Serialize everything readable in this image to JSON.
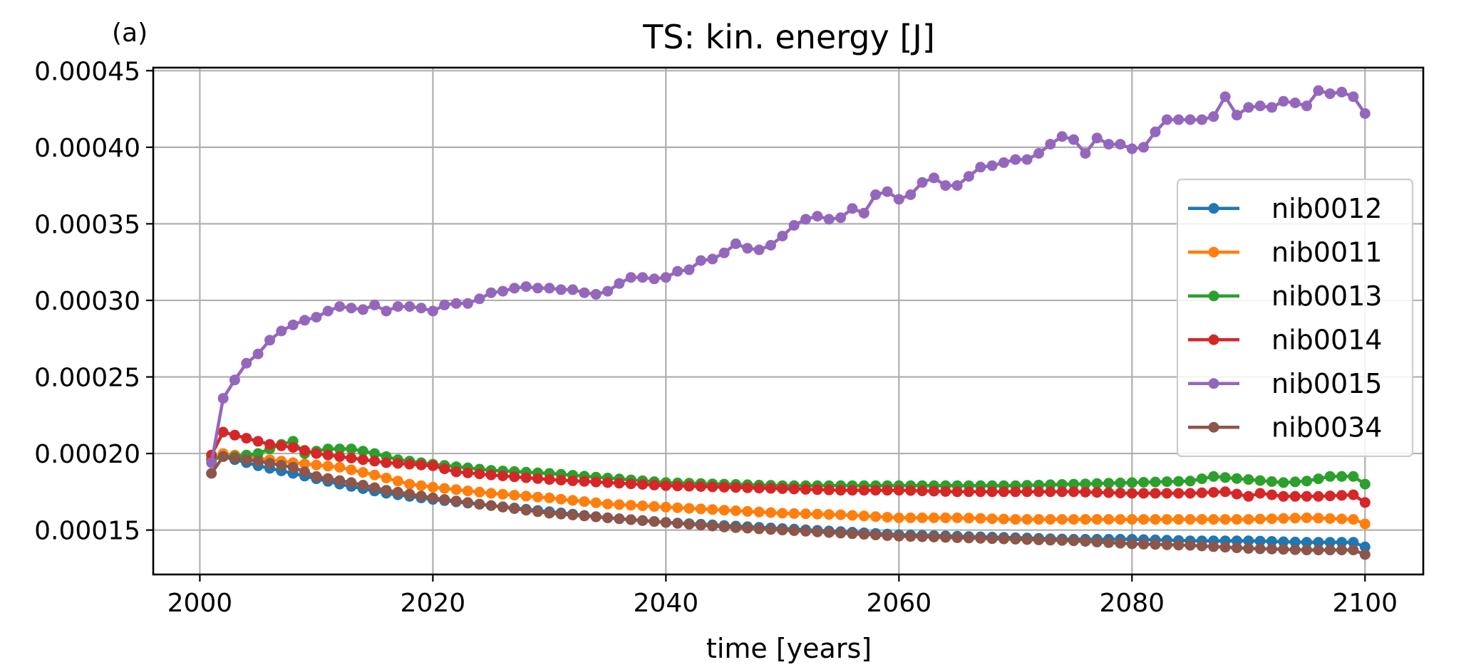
{
  "chart_data": {
    "type": "line",
    "title": "TS: kin. energy [J]",
    "panel_label": "(a)",
    "xlabel": "time [years]",
    "ylabel": "",
    "xlim": [
      1996,
      2105
    ],
    "ylim": [
      0.000121,
      0.000452
    ],
    "xticks": [
      2000,
      2020,
      2040,
      2060,
      2080,
      2100
    ],
    "xtick_labels": [
      "2000",
      "2020",
      "2040",
      "2060",
      "2080",
      "2100"
    ],
    "yticks": [
      0.00015,
      0.0002,
      0.00025,
      0.0003,
      0.00035,
      0.0004,
      0.00045
    ],
    "ytick_labels": [
      "0.00015",
      "0.00020",
      "0.00025",
      "0.00030",
      "0.00035",
      "0.00040",
      "0.00045"
    ],
    "grid": true,
    "legend_position": "center-right",
    "x_start": 2001,
    "x_end": 2100,
    "series": [
      {
        "name": "nib0012",
        "color": "#1f77b4",
        "knots": [
          [
            2001,
            0.000196
          ],
          [
            2002,
            0.000198
          ],
          [
            2005,
            0.000192
          ],
          [
            2008,
            0.000187
          ],
          [
            2012,
            0.00018
          ],
          [
            2016,
            0.000174
          ],
          [
            2020,
            0.00017
          ],
          [
            2025,
            0.000166
          ],
          [
            2030,
            0.000162
          ],
          [
            2035,
            0.000158
          ],
          [
            2040,
            0.000155
          ],
          [
            2045,
            0.000153
          ],
          [
            2050,
            0.000151
          ],
          [
            2055,
            0.000149
          ],
          [
            2060,
            0.000147
          ],
          [
            2065,
            0.000146
          ],
          [
            2070,
            0.000145
          ],
          [
            2075,
            0.000144
          ],
          [
            2080,
            0.000144
          ],
          [
            2085,
            0.000143
          ],
          [
            2090,
            0.000143
          ],
          [
            2095,
            0.000142
          ],
          [
            2099,
            0.000142
          ],
          [
            2100,
            0.000139
          ]
        ]
      },
      {
        "name": "nib0011",
        "color": "#ff7f0e",
        "knots": [
          [
            2001,
            0.000196
          ],
          [
            2002,
            0.0002
          ],
          [
            2005,
            0.000197
          ],
          [
            2008,
            0.000194
          ],
          [
            2012,
            0.000191
          ],
          [
            2015,
            0.000186
          ],
          [
            2018,
            0.00018
          ],
          [
            2020,
            0.000178
          ],
          [
            2025,
            0.000174
          ],
          [
            2030,
            0.000171
          ],
          [
            2035,
            0.000167
          ],
          [
            2040,
            0.000165
          ],
          [
            2045,
            0.000163
          ],
          [
            2050,
            0.000161
          ],
          [
            2055,
            0.00016
          ],
          [
            2060,
            0.000158
          ],
          [
            2065,
            0.000158
          ],
          [
            2070,
            0.000157
          ],
          [
            2075,
            0.000157
          ],
          [
            2080,
            0.000157
          ],
          [
            2085,
            0.000157
          ],
          [
            2090,
            0.000157
          ],
          [
            2095,
            0.000158
          ],
          [
            2099,
            0.000157
          ],
          [
            2100,
            0.000154
          ]
        ]
      },
      {
        "name": "nib0013",
        "color": "#2ca02c",
        "knots": [
          [
            2001,
            0.000196
          ],
          [
            2002,
            0.000198
          ],
          [
            2003,
            0.000198
          ],
          [
            2005,
            0.0002
          ],
          [
            2007,
            0.000206
          ],
          [
            2008,
            0.000208
          ],
          [
            2009,
            0.0002
          ],
          [
            2011,
            0.000203
          ],
          [
            2013,
            0.000203
          ],
          [
            2015,
            0.0002
          ],
          [
            2017,
            0.000196
          ],
          [
            2020,
            0.000193
          ],
          [
            2025,
            0.000189
          ],
          [
            2030,
            0.000187
          ],
          [
            2035,
            0.000184
          ],
          [
            2040,
            0.000181
          ],
          [
            2045,
            0.00018
          ],
          [
            2050,
            0.000179
          ],
          [
            2055,
            0.000179
          ],
          [
            2060,
            0.000179
          ],
          [
            2065,
            0.000179
          ],
          [
            2070,
            0.000179
          ],
          [
            2075,
            0.00018
          ],
          [
            2080,
            0.000181
          ],
          [
            2085,
            0.000182
          ],
          [
            2087,
            0.000185
          ],
          [
            2090,
            0.000183
          ],
          [
            2093,
            0.000181
          ],
          [
            2095,
            0.000182
          ],
          [
            2097,
            0.000185
          ],
          [
            2099,
            0.000185
          ],
          [
            2100,
            0.00018
          ]
        ]
      },
      {
        "name": "nib0014",
        "color": "#d62728",
        "knots": [
          [
            2001,
            0.000199
          ],
          [
            2002,
            0.000214
          ],
          [
            2003,
            0.000212
          ],
          [
            2006,
            0.000206
          ],
          [
            2008,
            0.000204
          ],
          [
            2010,
            0.0002
          ],
          [
            2013,
            0.000197
          ],
          [
            2016,
            0.000194
          ],
          [
            2020,
            0.000192
          ],
          [
            2022,
            0.000188
          ],
          [
            2025,
            0.000186
          ],
          [
            2030,
            0.000183
          ],
          [
            2035,
            0.000181
          ],
          [
            2040,
            0.000179
          ],
          [
            2045,
            0.000178
          ],
          [
            2050,
            0.000177
          ],
          [
            2055,
            0.000176
          ],
          [
            2060,
            0.000176
          ],
          [
            2065,
            0.000175
          ],
          [
            2070,
            0.000175
          ],
          [
            2075,
            0.000175
          ],
          [
            2080,
            0.000174
          ],
          [
            2085,
            0.000174
          ],
          [
            2088,
            0.000175
          ],
          [
            2090,
            0.000172
          ],
          [
            2091,
            0.000174
          ],
          [
            2093,
            0.000172
          ],
          [
            2096,
            0.000172
          ],
          [
            2099,
            0.000173
          ],
          [
            2100,
            0.000168
          ]
        ]
      },
      {
        "name": "nib0015",
        "color": "#9467bd",
        "knots": [
          [
            2001,
            0.000194
          ],
          [
            2002,
            0.000236
          ],
          [
            2003,
            0.000248
          ],
          [
            2004,
            0.000259
          ],
          [
            2005,
            0.000265
          ],
          [
            2006,
            0.000274
          ],
          [
            2007,
            0.00028
          ],
          [
            2008,
            0.000284
          ],
          [
            2009,
            0.000287
          ],
          [
            2010,
            0.000289
          ],
          [
            2011,
            0.000293
          ],
          [
            2012,
            0.000296
          ],
          [
            2013,
            0.000295
          ],
          [
            2014,
            0.000294
          ],
          [
            2015,
            0.000297
          ],
          [
            2016,
            0.000293
          ],
          [
            2017,
            0.000296
          ],
          [
            2018,
            0.000296
          ],
          [
            2019,
            0.000295
          ],
          [
            2020,
            0.000293
          ],
          [
            2021,
            0.000297
          ],
          [
            2022,
            0.000298
          ],
          [
            2023,
            0.000298
          ],
          [
            2024,
            0.000301
          ],
          [
            2025,
            0.000305
          ],
          [
            2026,
            0.000306
          ],
          [
            2027,
            0.000308
          ],
          [
            2028,
            0.000309
          ],
          [
            2029,
            0.000308
          ],
          [
            2030,
            0.000308
          ],
          [
            2031,
            0.000307
          ],
          [
            2032,
            0.000307
          ],
          [
            2033,
            0.000305
          ],
          [
            2034,
            0.000304
          ],
          [
            2035,
            0.000306
          ],
          [
            2036,
            0.000311
          ],
          [
            2037,
            0.000315
          ],
          [
            2038,
            0.000315
          ],
          [
            2039,
            0.000314
          ],
          [
            2040,
            0.000315
          ],
          [
            2041,
            0.000319
          ],
          [
            2042,
            0.00032
          ],
          [
            2043,
            0.000326
          ],
          [
            2044,
            0.000327
          ],
          [
            2045,
            0.000331
          ],
          [
            2046,
            0.000337
          ],
          [
            2047,
            0.000334
          ],
          [
            2048,
            0.000333
          ],
          [
            2049,
            0.000336
          ],
          [
            2050,
            0.000342
          ],
          [
            2051,
            0.000349
          ],
          [
            2052,
            0.000353
          ],
          [
            2053,
            0.000355
          ],
          [
            2054,
            0.000353
          ],
          [
            2055,
            0.000354
          ],
          [
            2056,
            0.00036
          ],
          [
            2057,
            0.000357
          ],
          [
            2058,
            0.000369
          ],
          [
            2059,
            0.000371
          ],
          [
            2060,
            0.000366
          ],
          [
            2061,
            0.000369
          ],
          [
            2062,
            0.000377
          ],
          [
            2063,
            0.00038
          ],
          [
            2064,
            0.000375
          ],
          [
            2065,
            0.000375
          ],
          [
            2066,
            0.000381
          ],
          [
            2067,
            0.000387
          ],
          [
            2068,
            0.000388
          ],
          [
            2069,
            0.00039
          ],
          [
            2070,
            0.000392
          ],
          [
            2071,
            0.000392
          ],
          [
            2072,
            0.000396
          ],
          [
            2073,
            0.000402
          ],
          [
            2074,
            0.000407
          ],
          [
            2075,
            0.000405
          ],
          [
            2076,
            0.000396
          ],
          [
            2077,
            0.000406
          ],
          [
            2078,
            0.000402
          ],
          [
            2079,
            0.000402
          ],
          [
            2080,
            0.000399
          ],
          [
            2081,
            0.0004
          ],
          [
            2082,
            0.00041
          ],
          [
            2083,
            0.000418
          ],
          [
            2084,
            0.000418
          ],
          [
            2085,
            0.000418
          ],
          [
            2086,
            0.000418
          ],
          [
            2087,
            0.00042
          ],
          [
            2088,
            0.000433
          ],
          [
            2089,
            0.000421
          ],
          [
            2090,
            0.000426
          ],
          [
            2091,
            0.000427
          ],
          [
            2092,
            0.000426
          ],
          [
            2093,
            0.00043
          ],
          [
            2094,
            0.000429
          ],
          [
            2095,
            0.000427
          ],
          [
            2096,
            0.000437
          ],
          [
            2097,
            0.000435
          ],
          [
            2098,
            0.000436
          ],
          [
            2099,
            0.000433
          ],
          [
            2100,
            0.000422
          ]
        ]
      },
      {
        "name": "nib0034",
        "color": "#8c564b",
        "knots": [
          [
            2001,
            0.000187
          ],
          [
            2002,
            0.000198
          ],
          [
            2003,
            0.000197
          ],
          [
            2005,
            0.000195
          ],
          [
            2008,
            0.000191
          ],
          [
            2010,
            0.000185
          ],
          [
            2013,
            0.000181
          ],
          [
            2016,
            0.000176
          ],
          [
            2020,
            0.000171
          ],
          [
            2025,
            0.000166
          ],
          [
            2030,
            0.000161
          ],
          [
            2035,
            0.000158
          ],
          [
            2040,
            0.000155
          ],
          [
            2045,
            0.000152
          ],
          [
            2050,
            0.00015
          ],
          [
            2055,
            0.000148
          ],
          [
            2060,
            0.000146
          ],
          [
            2065,
            0.000145
          ],
          [
            2070,
            0.000144
          ],
          [
            2075,
            0.000143
          ],
          [
            2080,
            0.000141
          ],
          [
            2085,
            0.00014
          ],
          [
            2090,
            0.000138
          ],
          [
            2095,
            0.000137
          ],
          [
            2099,
            0.000137
          ],
          [
            2100,
            0.000134
          ]
        ]
      }
    ]
  }
}
